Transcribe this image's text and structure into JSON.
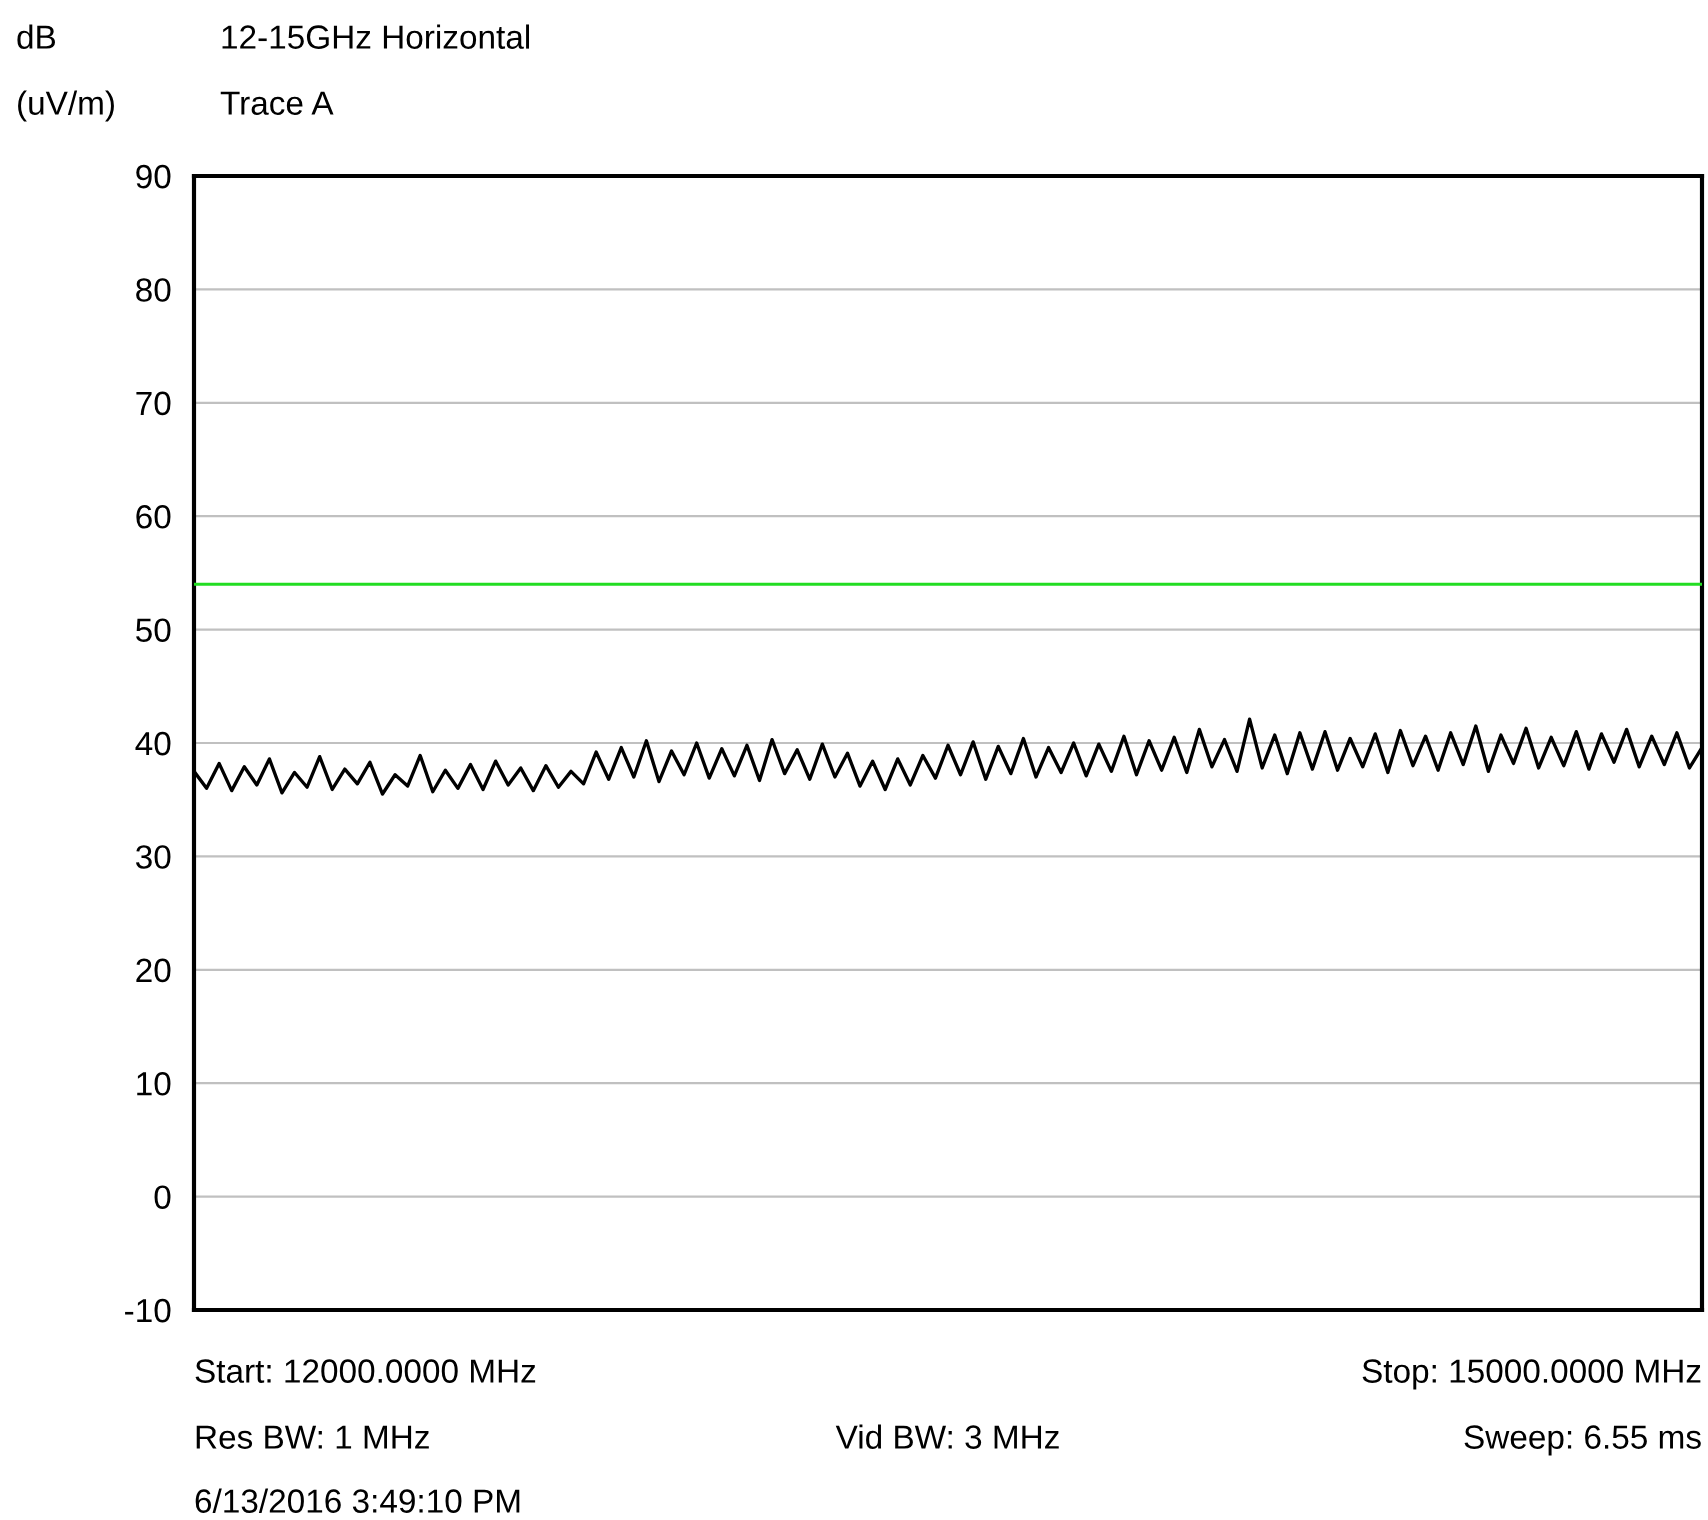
{
  "chart_data": {
    "type": "line",
    "title": "12-15GHz Horizontal",
    "subtitle": "Trace A",
    "ylabel": "dB\n(uV/m)",
    "categories": [
      null,
      null,
      null,
      null,
      null,
      null,
      null,
      null,
      null,
      null,
      null,
      null,
      null,
      null,
      null,
      null,
      null,
      null,
      null,
      null,
      null,
      null,
      null,
      null,
      null,
      null,
      null,
      null,
      null,
      null,
      null,
      null,
      null,
      null,
      null,
      null,
      null,
      null,
      null,
      null,
      null,
      null,
      null,
      null,
      null,
      null,
      null,
      null,
      null,
      null,
      null,
      null,
      null,
      null,
      null,
      null,
      null,
      null,
      null,
      null,
      null,
      null,
      null,
      null,
      null,
      null,
      null,
      null,
      null,
      null,
      null,
      null,
      null,
      null,
      null,
      null,
      null,
      null,
      null,
      null,
      null,
      null,
      null,
      null,
      null,
      null,
      null,
      null,
      null,
      null,
      null,
      null,
      null,
      null,
      null,
      null,
      null,
      null,
      null,
      null,
      null,
      null,
      null,
      null,
      null,
      null,
      null,
      null,
      null,
      null,
      null,
      null,
      null,
      null,
      null,
      null,
      null,
      null,
      null,
      null,
      null
    ],
    "series": [
      {
        "color": "#000000",
        "values": [
          37.5,
          36.0,
          38.2,
          35.8,
          37.9,
          36.3,
          38.6,
          35.6,
          37.4,
          36.1,
          38.8,
          35.9,
          37.7,
          36.4,
          38.3,
          35.5,
          37.2,
          36.2,
          38.9,
          35.7,
          37.6,
          36.0,
          38.1,
          35.9,
          38.4,
          36.3,
          37.8,
          35.8,
          38.0,
          36.1,
          37.5,
          36.4,
          39.2,
          36.8,
          39.6,
          37.0,
          40.2,
          36.6,
          39.3,
          37.2,
          40.0,
          36.9,
          39.5,
          37.1,
          39.8,
          36.7,
          40.3,
          37.3,
          39.4,
          36.8,
          39.9,
          37.0,
          39.1,
          36.2,
          38.4,
          35.9,
          38.6,
          36.3,
          38.9,
          36.9,
          39.8,
          37.2,
          40.1,
          36.8,
          39.7,
          37.3,
          40.4,
          37.0,
          39.6,
          37.4,
          40.0,
          37.1,
          39.9,
          37.5,
          40.6,
          37.2,
          40.2,
          37.6,
          40.5,
          37.4,
          41.2,
          37.9,
          40.3,
          37.5,
          42.1,
          37.8,
          40.7,
          37.3,
          40.9,
          37.7,
          41.0,
          37.6,
          40.4,
          37.9,
          40.8,
          37.4,
          41.1,
          38.0,
          40.6,
          37.6,
          40.9,
          38.1,
          41.5,
          37.5,
          40.7,
          38.2,
          41.3,
          37.8,
          40.5,
          38.0,
          41.0,
          37.7,
          40.8,
          38.3,
          41.2,
          37.9,
          40.6,
          38.1,
          40.9,
          37.8,
          39.6
        ]
      }
    ],
    "ylim": [
      -10,
      90
    ],
    "yticks": [
      -10,
      0,
      10,
      20,
      30,
      40,
      50,
      60,
      70,
      80,
      90
    ],
    "tick_labels": "y",
    "grid": "y",
    "legend": false,
    "marker": "none",
    "line_style": "solid",
    "ref_lines": [
      {
        "axis": "y",
        "value": 54,
        "color": "#22dd22"
      }
    ],
    "annotations": [
      "Start: 12000.0000 MHz",
      "Stop: 15000.0000 MHz",
      "Res BW: 1 MHz",
      "Vid BW: 3 MHz",
      "Sweep: 6.55 ms",
      "6/13/2016 3:49:10 PM"
    ]
  }
}
